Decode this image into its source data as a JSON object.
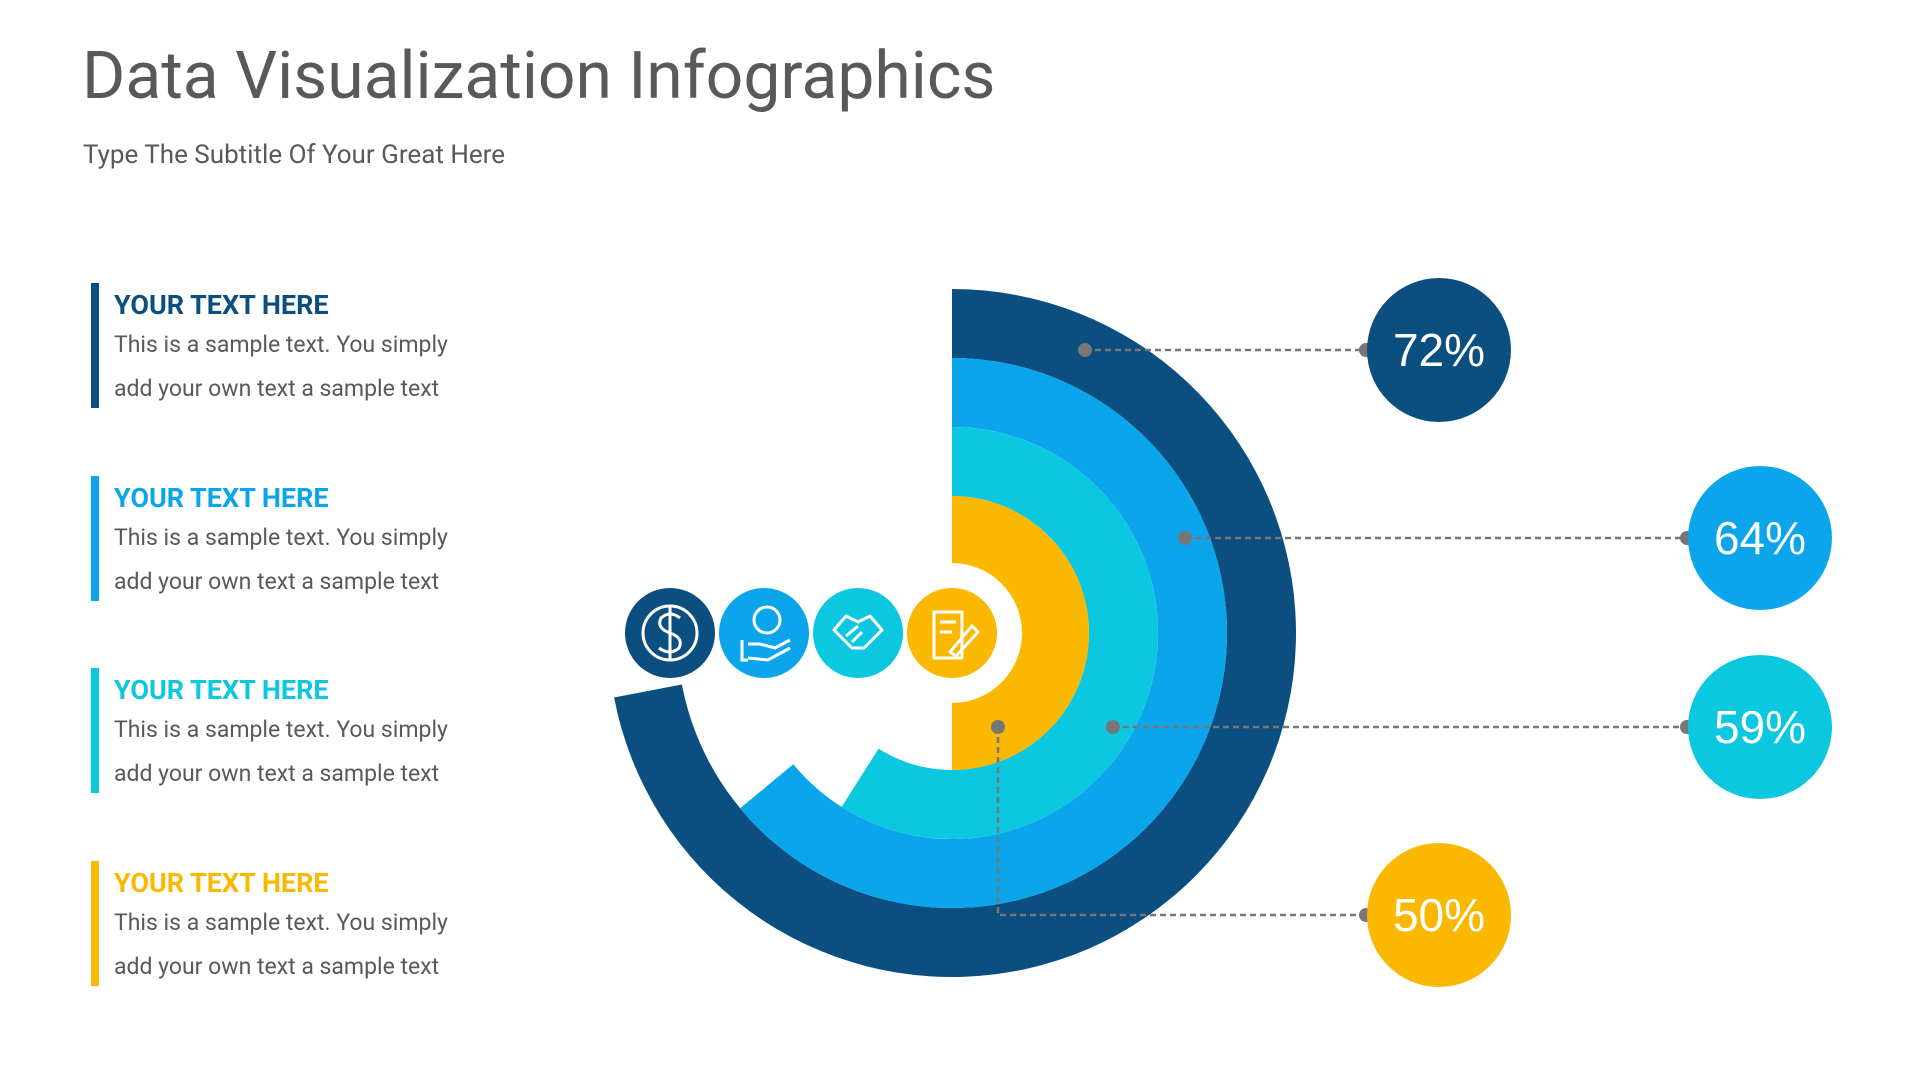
{
  "chart_data": {
    "type": "radial_bar",
    "title": "Data Visualization Infographics",
    "subtitle": "Type The Subtitle Of Your Great Here",
    "categories": [
      "YOUR TEXT HERE",
      "YOUR TEXT HERE",
      "YOUR TEXT HERE",
      "YOUR TEXT HERE"
    ],
    "descriptions": [
      "This is a sample text. You simply add your own text a sample text",
      "This is a sample text. You simply add your own text a sample text",
      "This is a sample text. You simply add your own text a sample text",
      "This is a sample text. You simply add your own text a sample text"
    ],
    "values": [
      72,
      64,
      59,
      50
    ],
    "value_labels": [
      "72%",
      "64%",
      "59%",
      "50%"
    ],
    "colors": [
      "#0b4f80",
      "#0ba5ec",
      "#0bc8e0",
      "#fbb800"
    ],
    "ylim": [
      0,
      100
    ]
  }
}
